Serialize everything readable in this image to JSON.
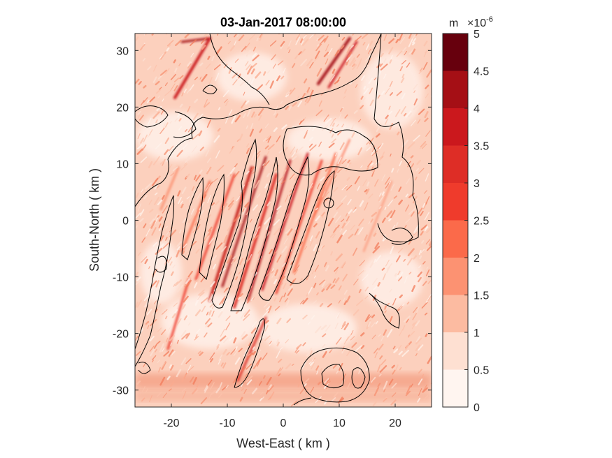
{
  "chart_data": {
    "type": "heatmap",
    "title": "03-Jan-2017 08:00:00",
    "xlabel": "West-East ( km )",
    "ylabel": "South-North ( km )",
    "xlim": [
      -26.5,
      26.5
    ],
    "ylim": [
      -33,
      33
    ],
    "xticks": [
      -20,
      -10,
      0,
      10,
      20
    ],
    "yticks": [
      -30,
      -20,
      -10,
      0,
      10,
      20,
      30
    ],
    "colorbar": {
      "unit": "m",
      "multiplier_base": "×10",
      "multiplier_exp": "-6",
      "levels": [
        0,
        0.5,
        1,
        1.5,
        2,
        2.5,
        3,
        3.5,
        4,
        4.5,
        5
      ],
      "tick_labels": [
        "0",
        "0.5",
        "1",
        "1.5",
        "2",
        "2.5",
        "3",
        "3.5",
        "4",
        "4.5",
        "5"
      ],
      "colors": [
        "#fff5f0",
        "#fee0d2",
        "#fcbba1",
        "#fc9272",
        "#fb6a4a",
        "#ef3b2c",
        "#de2d26",
        "#cb181d",
        "#a50f15",
        "#67000d"
      ]
    }
  }
}
